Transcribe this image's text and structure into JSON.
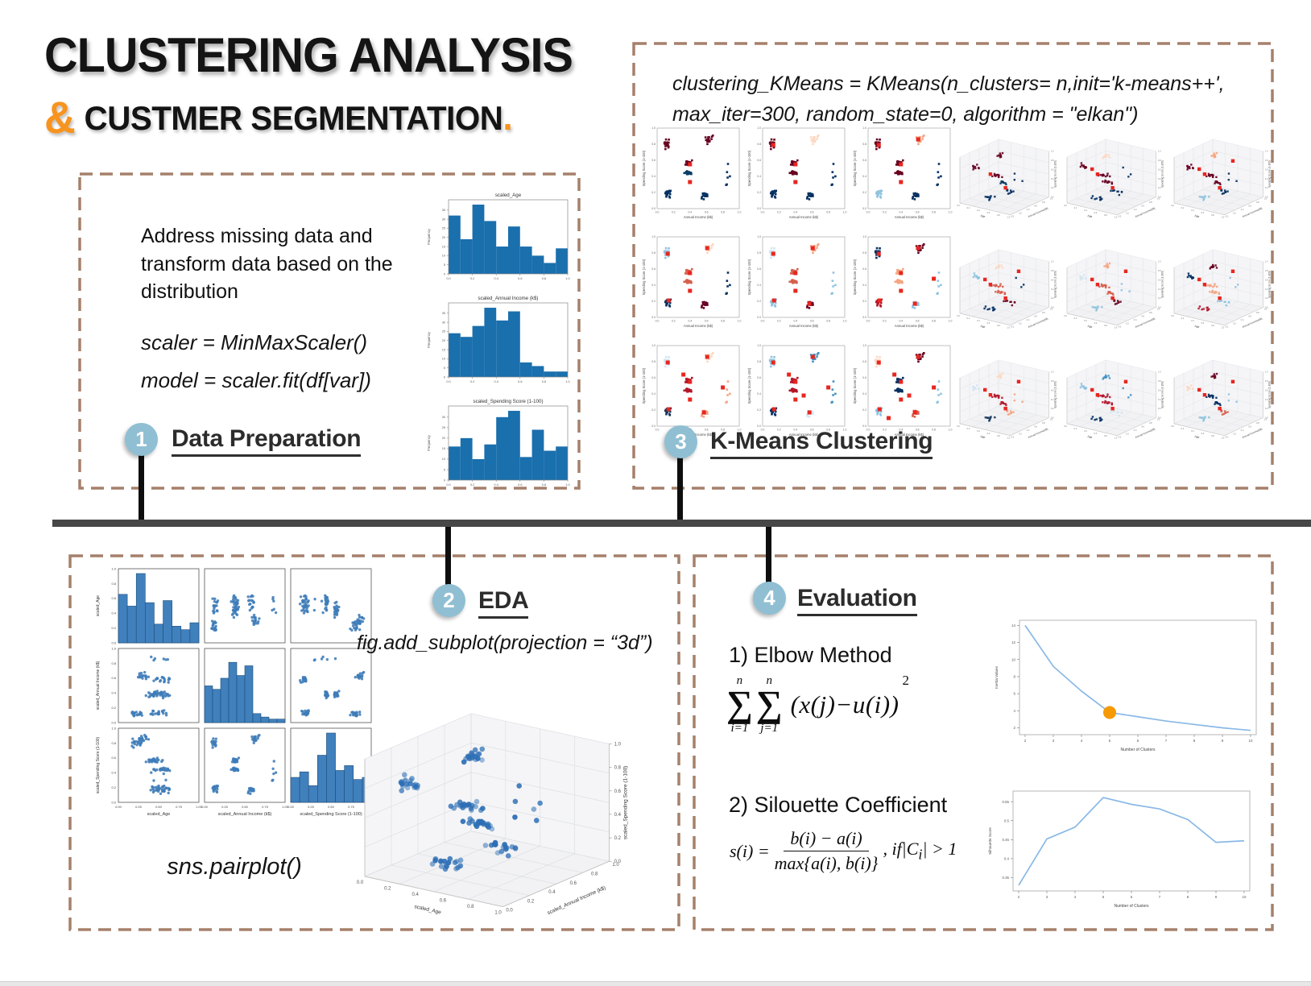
{
  "title": {
    "line1": "CLUSTERING ANALYSIS",
    "amp": "&",
    "line2": " CUSTMER SEGMENTATION",
    "period": "."
  },
  "colors": {
    "accent_orange": "#f7941e",
    "badge_blue": "#90bfd3",
    "dashed_border": "#a5806b",
    "bar_gray": "#474747",
    "hist_blue": "#1a6fad",
    "pairplot_blue": "#3f7cb8",
    "centroid_red": "#e8261f",
    "line_blue": "#89b8e6",
    "elbow_marker_orange": "#f59a00"
  },
  "sections": {
    "prep": {
      "number": "1",
      "heading": "Data Preparation",
      "body": "Address missing data and transform data based on the distribution",
      "code_line1": "scaler = MinMaxScaler()",
      "code_line2": "model = scaler.fit(df[var])"
    },
    "eda": {
      "number": "2",
      "heading": "EDA",
      "code": "fig.add_subplot(projection = “3d”)",
      "caption": "sns.pairplot()"
    },
    "kmeans": {
      "number": "3",
      "heading": "K-Means Clustering",
      "code_line1": "clustering_KMeans = KMeans(n_clusters= n,init='k-means++',",
      "code_line2": "max_iter=300, random_state=0, algorithm = \"elkan\")"
    },
    "eval": {
      "number": "4",
      "heading": "Evaluation",
      "item1_label": "1) Elbow Method",
      "item2_label": "2) Silouette Coefficient",
      "formula1": {
        "top_n1": "n",
        "sigma1": "∑",
        "lim_i": "i=1",
        "top_n2": "n",
        "sigma2": "∑",
        "lim_j": "j=1",
        "expr": "(x(j)−u(i))",
        "power": "2"
      },
      "formula2": {
        "lhs": "s(i) =",
        "num": "b(i) − a(i)",
        "den": "max{a(i), b(i)}",
        "tail_pre": ", if|C",
        "tail_sub": "i",
        "tail_post": "| > 1"
      }
    }
  },
  "scatter_blobs": [
    {
      "n": 18,
      "income": 0.11,
      "spend": 0.8,
      "age": 0.25,
      "si": 0.07,
      "ss": 0.1,
      "sa": 0.15
    },
    {
      "n": 18,
      "income": 0.12,
      "spend": 0.2,
      "age": 0.5,
      "si": 0.07,
      "ss": 0.09,
      "sa": 0.25
    },
    {
      "n": 22,
      "income": 0.38,
      "spend": 0.56,
      "age": 0.45,
      "si": 0.06,
      "ss": 0.05,
      "sa": 0.2
    },
    {
      "n": 22,
      "income": 0.38,
      "spend": 0.44,
      "age": 0.55,
      "si": 0.06,
      "ss": 0.05,
      "sa": 0.2
    },
    {
      "n": 17,
      "income": 0.62,
      "spend": 0.86,
      "age": 0.3,
      "si": 0.09,
      "ss": 0.08,
      "sa": 0.12
    },
    {
      "n": 17,
      "income": 0.58,
      "spend": 0.17,
      "age": 0.55,
      "si": 0.1,
      "ss": 0.08,
      "sa": 0.2
    },
    {
      "n": 6,
      "income": 0.86,
      "spend": 0.45,
      "age": 0.5,
      "si": 0.09,
      "ss": 0.28,
      "sa": 0.28
    }
  ],
  "chart_data": [
    {
      "id": "hist_age",
      "type": "bar",
      "title": "scaled_Age",
      "ylabel": "Frequency",
      "xticks": [
        "0.0",
        "0.2",
        "0.4",
        "0.6",
        "0.8",
        "1.0"
      ],
      "values": [
        32,
        19,
        38,
        29,
        15,
        26,
        15,
        10,
        6,
        14
      ]
    },
    {
      "id": "hist_income",
      "type": "bar",
      "title": "scaled_Annual Income (k$)",
      "ylabel": "Frequency",
      "xticks": [
        "0.0",
        "0.2",
        "0.4",
        "0.6",
        "0.8",
        "1.0"
      ],
      "values": [
        24,
        22,
        28,
        38,
        31,
        36,
        8,
        6,
        3,
        3
      ]
    },
    {
      "id": "hist_spend",
      "type": "bar",
      "title": "scaled_Spending Score (1-100)",
      "ylabel": "Frequency",
      "xticks": [
        "0.0",
        "0.2",
        "0.4",
        "0.6",
        "0.8",
        "1.0"
      ],
      "values": [
        16,
        20,
        10,
        17,
        30,
        33,
        11,
        24,
        14,
        16
      ]
    },
    {
      "id": "pairplot",
      "type": "scatter-matrix",
      "vars": [
        "scaled_Age",
        "scaled_Annual Income (k$)",
        "scaled_Spending Score (1-100)"
      ],
      "xticks": [
        "0.00",
        "0.25",
        "0.50",
        "0.75",
        "1.00"
      ],
      "yticks": [
        "0.0",
        "0.2",
        "0.4",
        "0.6",
        "0.8",
        "1.0"
      ],
      "diag_hists": [
        [
          0.7,
          0.53,
          1.0,
          0.58,
          0.27,
          0.61,
          0.24,
          0.19,
          0.29
        ],
        [
          0.53,
          0.48,
          0.64,
          0.87,
          0.68,
          0.82,
          0.13,
          0.08,
          0.05,
          0.05
        ],
        [
          0.36,
          0.44,
          0.24,
          0.68,
          1.0,
          0.46,
          0.53,
          0.33,
          0.36
        ]
      ]
    },
    {
      "id": "eda3d",
      "type": "scatter3d",
      "xlabel": "scaled_Age",
      "ylabel": "scaled_Annual Income (k$)",
      "zlabel": "scaled_Spending Score (1-100)",
      "ticks": [
        "0.0",
        "0.2",
        "0.4",
        "0.6",
        "0.8",
        "1.0"
      ]
    },
    {
      "id": "kmeans2d",
      "type": "scatter-grid",
      "xlabel": "Annual Income (k$)",
      "ylabel": "Spending Score (1-100)",
      "ticks": [
        "0.0",
        "0.2",
        "0.4",
        "0.6",
        "0.8",
        "1.0"
      ],
      "k_values": [
        2,
        3,
        4,
        5,
        6,
        7,
        8,
        9,
        10
      ],
      "centroids": [
        [
          0.4,
          0.55
        ],
        [
          0.4,
          0.33
        ],
        [
          0.13,
          0.79
        ],
        [
          0.61,
          0.86
        ],
        [
          0.14,
          0.21
        ],
        [
          0.57,
          0.17
        ],
        [
          0.8,
          0.48
        ],
        [
          0.32,
          0.64
        ],
        [
          0.5,
          0.38
        ],
        [
          0.25,
          0.1
        ]
      ],
      "palettes": [
        [
          "#67001f",
          "#053061",
          "#67001f",
          "#0b3d66",
          "#67001f",
          "#053061",
          "#053061"
        ],
        [
          "#67001f",
          "#053061",
          "#67001f",
          "#67001f",
          "#fbd9c4",
          "#053061",
          "#053061"
        ],
        [
          "#67001f",
          "#8fc3de",
          "#67001f",
          "#67001f",
          "#f4a582",
          "#053061",
          "#053061"
        ],
        [
          "#8fc3de",
          "#053061",
          "#d6604d",
          "#d6604d",
          "#fbd9c4",
          "#67001f",
          "#053061"
        ],
        [
          "#d3e5f0",
          "#8fc3de",
          "#d6604d",
          "#d6604d",
          "#f4a582",
          "#67001f",
          "#8fc3de"
        ],
        [
          "#053061",
          "#b2182b",
          "#f4a582",
          "#f4a582",
          "#67001f",
          "#8fc3de",
          "#8fc3de"
        ],
        [
          "#d3e5f0",
          "#16365c",
          "#b2182b",
          "#b2182b",
          "#fbd9c4",
          "#f4a582",
          "#f4a582"
        ],
        [
          "#8fc3de",
          "#053061",
          "#b2182b",
          "#b2182b",
          "#4393c3",
          "#d3e5f0",
          "#4393c3"
        ],
        [
          "#fbd9c4",
          "#8fc3de",
          "#053061",
          "#053061",
          "#67001f",
          "#d6604d",
          "#8fc3de"
        ]
      ]
    },
    {
      "id": "kmeans3d",
      "type": "scatter3d-grid",
      "xlabel": "Age",
      "ylabel": "Annual Income(k$)",
      "zlabel": "Spending Score (1-100)",
      "ticks": [
        "0.0",
        "0.2",
        "0.4",
        "0.6",
        "0.8",
        "1.0"
      ]
    },
    {
      "id": "elbow",
      "type": "line",
      "x": [
        2,
        3,
        4,
        5,
        6,
        7,
        8,
        9,
        10
      ],
      "y": [
        14,
        9.2,
        6.3,
        3.8,
        3.3,
        2.8,
        2.4,
        2.0,
        1.7
      ],
      "yticks": [
        2,
        4,
        6,
        8,
        10,
        12,
        14
      ],
      "ylim": [
        1.2,
        14.6
      ],
      "xlabel": "Number of Clusters",
      "ylabel": "Inertia Values",
      "highlight": {
        "x": 5,
        "y": 3.8
      }
    },
    {
      "id": "silhouette",
      "type": "line",
      "x": [
        2,
        3,
        4,
        5,
        6,
        7,
        8,
        9,
        10
      ],
      "y": [
        0.33,
        0.452,
        0.483,
        0.561,
        0.543,
        0.531,
        0.503,
        0.443,
        0.447
      ],
      "yticks": [
        0.35,
        0.4,
        0.45,
        0.5,
        0.55
      ],
      "ylim": [
        0.315,
        0.578
      ],
      "xlabel": "Number of Clusters",
      "ylabel": "Silhouette Score"
    }
  ]
}
